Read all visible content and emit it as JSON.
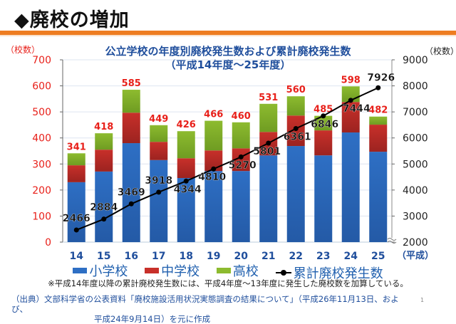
{
  "slide": {
    "title": "◆廃校の増加",
    "accent_color": "#ee7d21"
  },
  "chart_data": {
    "type": "bar",
    "stacked": true,
    "title": "公立学校の年度別廃校発生数および累計廃校発生数",
    "subtitle": "（平成14年度～25年度）",
    "xlabel": "（平成）",
    "ylabel_left": "（校数）",
    "ylabel_right": "（校数）",
    "categories": [
      "14",
      "15",
      "16",
      "17",
      "18",
      "19",
      "20",
      "21",
      "22",
      "23",
      "24",
      "25"
    ],
    "ylim_left": [
      0,
      700
    ],
    "yticks_left": [
      0,
      100,
      200,
      300,
      400,
      500,
      600,
      700
    ],
    "ylim_right": [
      2000,
      9000
    ],
    "yticks_right": [
      2000,
      3000,
      4000,
      5000,
      6000,
      7000,
      8000,
      9000
    ],
    "right_axis_break": true,
    "grid": true,
    "series": [
      {
        "name": "小学校",
        "color": "#2e6fc4",
        "values": [
          230,
          271,
          380,
          315,
          246,
          273,
          273,
          333,
          369,
          333,
          421,
          347
        ]
      },
      {
        "name": "中学校",
        "color": "#c8302a",
        "values": [
          65,
          84,
          117,
          70,
          76,
          79,
          87,
          90,
          117,
          96,
          117,
          104
        ]
      },
      {
        "name": "高校",
        "color": "#8dbb2f",
        "values": [
          46,
          63,
          88,
          64,
          104,
          114,
          100,
          108,
          74,
          56,
          60,
          31
        ]
      }
    ],
    "totals": [
      341,
      418,
      585,
      449,
      426,
      466,
      460,
      531,
      560,
      485,
      598,
      482
    ],
    "line_series": {
      "name": "累計廃校発生数",
      "axis": "right",
      "color": "#000000",
      "values": [
        2466,
        2884,
        3469,
        3918,
        4344,
        4810,
        5270,
        5801,
        6361,
        6846,
        7444,
        7926
      ]
    },
    "legend_position": "bottom"
  },
  "legend": {
    "items": [
      {
        "label": "小学校",
        "color": "#2e6fc4",
        "type": "box"
      },
      {
        "label": "中学校",
        "color": "#c8302a",
        "type": "box"
      },
      {
        "label": "高校",
        "color": "#8dbb2f",
        "type": "box"
      },
      {
        "label": "累計廃校発生数",
        "color": "#000000",
        "type": "line"
      }
    ]
  },
  "note": "※平成14年度以降の累計廃校発生数には、平成4年度～13年度に発生した廃校数を加算している。",
  "source": {
    "line1": "（出典）文部科学省の公表資料「廃校施設活用状況実態調査の結果について」（平成26年11月13日、および、",
    "line2": "平成24年9月14日）を元に作成"
  },
  "page_number": "1"
}
